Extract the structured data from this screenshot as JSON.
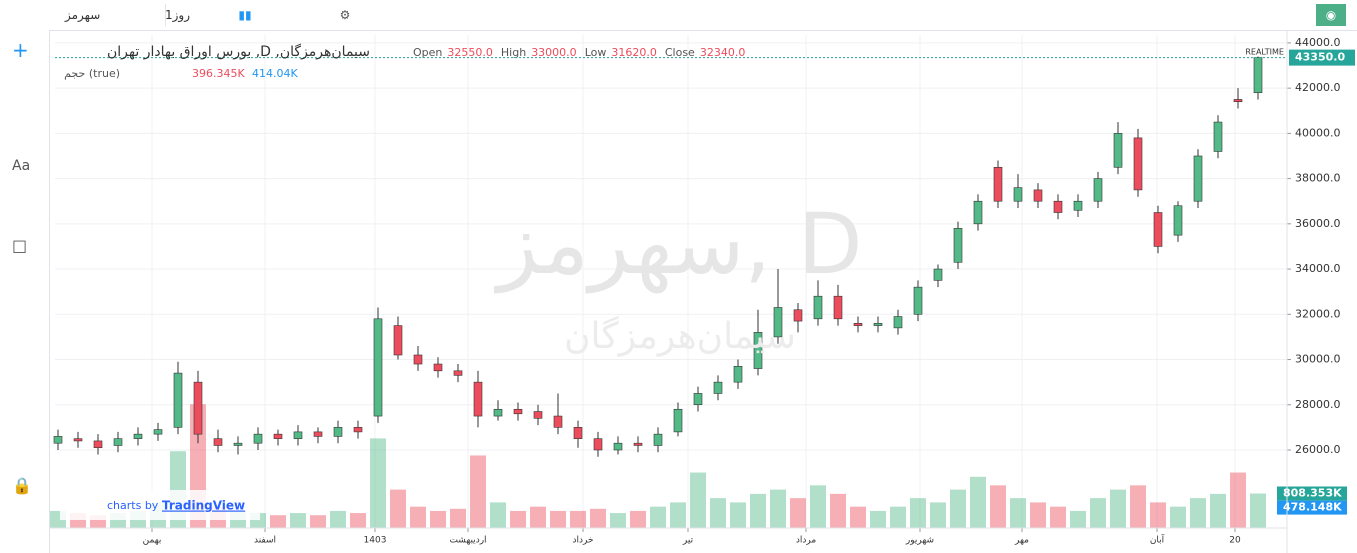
{
  "toolbar": {
    "symbol": "سهرمز",
    "interval": "1روز"
  },
  "chart_data": {
    "type": "candlestick",
    "title": "بورس اوراق بهادار تهران ,D ,سیمان‌هرمزگان",
    "watermark": "سهرمز, D",
    "watermark_sub": "سیمان‌هرمزگان",
    "legend_ohlc": [
      {
        "name": "Open",
        "text": "32550.0"
      },
      {
        "name": "High",
        "text": "33000.0"
      },
      {
        "name": "Low",
        "text": "31620.0"
      },
      {
        "name": "Close",
        "text": "32340.0"
      }
    ],
    "volume_legend": {
      "name": "حجم (true)",
      "text": [
        "396.345K",
        "414.04K"
      ]
    },
    "realtime": "REALTIME",
    "branding": "charts by",
    "brand": "TradingView",
    "up_color": "#53b987",
    "down_color": "#eb4d5c",
    "xlim": [
      -0.15,
      61.45
    ],
    "xticks": [
      {
        "value": 4.7,
        "label": "بهمن"
      },
      {
        "value": 10.35,
        "label": "اسفند"
      },
      {
        "value": 15.85,
        "label": "1403"
      },
      {
        "value": 20.5,
        "label": "اردیبهشت"
      },
      {
        "value": 26.25,
        "label": "خرداد"
      },
      {
        "value": 31.5,
        "label": "تیر"
      },
      {
        "value": 37.4,
        "label": "مرداد"
      },
      {
        "value": 43.1,
        "label": "شهریور"
      },
      {
        "value": 48.2,
        "label": "مهر"
      },
      {
        "value": 54.95,
        "label": "آبان"
      },
      {
        "value": 58.85,
        "label": "20"
      }
    ],
    "ylim": [
      22550,
      44350
    ],
    "yticks": [
      {
        "value": 26000,
        "label": "26000.0"
      },
      {
        "value": 28000,
        "label": "28000.0"
      },
      {
        "value": 30000,
        "label": "30000.0"
      },
      {
        "value": 32000,
        "label": "32000.0"
      },
      {
        "value": 34000,
        "label": "34000.0"
      },
      {
        "value": 36000,
        "label": "36000.0"
      },
      {
        "value": 38000,
        "label": "38000.0"
      },
      {
        "value": 40000,
        "label": "40000.0"
      },
      {
        "value": 42000,
        "label": "42000.0"
      },
      {
        "value": 44000,
        "label": "44000.0"
      }
    ],
    "grid": true,
    "last_price": {
      "value": 43350,
      "label": "43350.0"
    },
    "y2lim": [
      0,
      3000000
    ],
    "volume_last": {
      "value": 808353,
      "label": "808.353K"
    },
    "volume_ma": {
      "value": 478148,
      "label": "478.148K"
    },
    "open": [
      26300,
      26500,
      26400,
      26200,
      26500,
      26700,
      27000,
      29000,
      26500,
      26200,
      26300,
      26700,
      26500,
      26800,
      26600,
      27000,
      27500,
      31500,
      30200,
      29800,
      29500,
      29000,
      27500,
      27800,
      27700,
      27500,
      27000,
      26500,
      26000,
      26300,
      26200,
      26800,
      28000,
      28500,
      29000,
      29600,
      31000,
      32200,
      31800,
      32800,
      31600,
      31500,
      31400,
      32000,
      33500,
      34300,
      36000,
      38500,
      37000,
      37500,
      37000,
      36600,
      37000,
      38500,
      39800,
      36500,
      35500,
      37000,
      39200,
      41500,
      41800
    ],
    "high": [
      26900,
      26800,
      26700,
      26800,
      27000,
      27200,
      29900,
      29500,
      26900,
      26600,
      27000,
      26900,
      27100,
      27000,
      27300,
      27300,
      32300,
      31900,
      30600,
      30100,
      29800,
      29500,
      28200,
      28100,
      28000,
      28500,
      27300,
      26800,
      26600,
      26600,
      27000,
      28100,
      28800,
      29300,
      30000,
      32200,
      34000,
      32500,
      33500,
      33300,
      31900,
      31900,
      32200,
      33500,
      34200,
      36100,
      37300,
      38800,
      38200,
      37800,
      37300,
      37300,
      38300,
      40500,
      40200,
      36800,
      37000,
      39300,
      40800,
      42000,
      43400
    ],
    "low": [
      26000,
      26100,
      25800,
      25900,
      26200,
      26400,
      26700,
      26300,
      25900,
      25800,
      26000,
      26200,
      26200,
      26300,
      26300,
      26500,
      27200,
      30000,
      29500,
      29200,
      29000,
      27000,
      27300,
      27300,
      27100,
      26700,
      26100,
      25700,
      25800,
      25900,
      25900,
      26600,
      27700,
      28200,
      28700,
      29300,
      30700,
      31200,
      31500,
      31500,
      31200,
      31200,
      31100,
      31700,
      33200,
      34000,
      35700,
      36700,
      36700,
      36700,
      36200,
      36300,
      36700,
      38200,
      37200,
      34700,
      35200,
      36700,
      38900,
      41100,
      41500
    ],
    "close": [
      26600,
      26400,
      26100,
      26500,
      26700,
      26900,
      29400,
      26700,
      26200,
      26300,
      26700,
      26500,
      26800,
      26600,
      27000,
      26800,
      31800,
      30200,
      29800,
      29500,
      29300,
      27500,
      27800,
      27600,
      27400,
      27000,
      26500,
      26000,
      26300,
      26200,
      26700,
      27800,
      28500,
      29000,
      29700,
      31200,
      32300,
      31700,
      32800,
      31800,
      31500,
      31600,
      31900,
      33200,
      34000,
      35800,
      37000,
      37000,
      37600,
      37000,
      36500,
      37000,
      38000,
      40000,
      37500,
      35000,
      36800,
      39000,
      40500,
      41400,
      43350
    ],
    "volume": [
      400000,
      350000,
      300000,
      350000,
      400000,
      600000,
      1800000,
      2900000,
      500000,
      400000,
      350000,
      300000,
      350000,
      300000,
      400000,
      350000,
      2100000,
      900000,
      500000,
      400000,
      450000,
      1700000,
      600000,
      400000,
      500000,
      400000,
      400000,
      450000,
      350000,
      400000,
      500000,
      600000,
      1300000,
      700000,
      600000,
      800000,
      900000,
      700000,
      1000000,
      800000,
      500000,
      400000,
      500000,
      700000,
      600000,
      900000,
      1200000,
      1000000,
      700000,
      600000,
      500000,
      400000,
      700000,
      900000,
      1000000,
      600000,
      500000,
      700000,
      800000,
      1300000,
      808353
    ]
  }
}
